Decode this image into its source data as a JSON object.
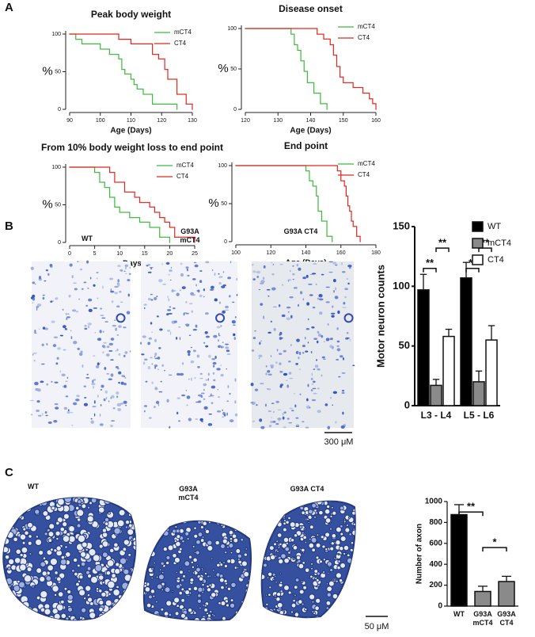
{
  "panel_labels": [
    "A",
    "B",
    "C"
  ],
  "chart_data": [
    {
      "type": "line",
      "step": true,
      "title": "Peak body weight",
      "x_label": "Age (Days)",
      "y_label": "%",
      "xlim": [
        90,
        130
      ],
      "xticks": [
        90,
        100,
        110,
        120,
        130
      ],
      "ylim": [
        0,
        100
      ],
      "yticks": [
        0,
        50,
        100
      ],
      "legend": "upper right",
      "series": [
        {
          "name": "mCT4",
          "color": "#3cb93c",
          "x": [
            90,
            92,
            94,
            100,
            103,
            106,
            107,
            108,
            110,
            111,
            112,
            114,
            117,
            125
          ],
          "values": [
            100,
            93,
            87,
            80,
            73,
            67,
            53,
            47,
            40,
            33,
            27,
            20,
            7,
            0
          ]
        },
        {
          "name": "CT4",
          "color": "#e3261e",
          "x": [
            90,
            106,
            110,
            117,
            119,
            121,
            122,
            125,
            128,
            130
          ],
          "values": [
            100,
            93,
            87,
            73,
            67,
            53,
            40,
            20,
            7,
            0
          ]
        }
      ]
    },
    {
      "type": "line",
      "step": true,
      "title": "Disease onset",
      "x_label": "Age (Days)",
      "y_label": "%",
      "xlim": [
        120,
        160
      ],
      "xticks": [
        120,
        130,
        140,
        150,
        160
      ],
      "ylim": [
        0,
        100
      ],
      "yticks": [
        0,
        50,
        100
      ],
      "legend": "upper right",
      "series": [
        {
          "name": "mCT4",
          "color": "#3cb93c",
          "x": [
            120,
            134,
            135,
            136,
            137,
            138,
            139,
            141,
            143,
            145
          ],
          "values": [
            100,
            93,
            80,
            73,
            60,
            47,
            33,
            20,
            7,
            0
          ]
        },
        {
          "name": "CT4",
          "color": "#e3261e",
          "x": [
            120,
            142,
            144,
            146,
            147,
            148,
            149,
            150,
            153,
            156,
            158,
            159,
            160
          ],
          "values": [
            100,
            93,
            87,
            80,
            67,
            53,
            40,
            33,
            27,
            20,
            13,
            7,
            0
          ]
        }
      ]
    },
    {
      "type": "line",
      "step": true,
      "title": "From 10% body weight loss to end point",
      "x_label": "Days",
      "y_label": "%",
      "xlim": [
        0,
        25
      ],
      "xticks": [
        0,
        5,
        10,
        15,
        20,
        25
      ],
      "ylim": [
        0,
        100
      ],
      "yticks": [
        0,
        50,
        100
      ],
      "legend": "upper right",
      "series": [
        {
          "name": "mCT4",
          "color": "#3cb93c",
          "x": [
            0,
            5,
            6,
            7,
            8,
            9,
            10,
            12,
            14,
            16,
            18,
            20
          ],
          "values": [
            100,
            93,
            80,
            73,
            60,
            47,
            40,
            33,
            27,
            20,
            7,
            0
          ]
        },
        {
          "name": "CT4",
          "color": "#e3261e",
          "x": [
            0,
            8,
            9,
            11,
            13,
            14,
            16,
            17,
            18,
            19,
            20,
            21,
            25
          ],
          "values": [
            100,
            93,
            80,
            67,
            60,
            53,
            47,
            40,
            33,
            27,
            20,
            7,
            0
          ]
        }
      ]
    },
    {
      "type": "line",
      "step": true,
      "title": "End point",
      "x_label": "Age (Days)",
      "y_label": "%",
      "xlim": [
        100,
        180
      ],
      "xticks": [
        100,
        120,
        140,
        160,
        180
      ],
      "ylim": [
        0,
        100
      ],
      "yticks": [
        0,
        50,
        100
      ],
      "legend": "upper right",
      "series": [
        {
          "name": "mCT4",
          "color": "#3cb93c",
          "x": [
            100,
            140,
            142,
            144,
            146,
            147,
            149,
            152,
            155
          ],
          "values": [
            100,
            93,
            80,
            73,
            60,
            40,
            27,
            7,
            0
          ]
        },
        {
          "name": "CT4",
          "color": "#e3261e",
          "x": [
            100,
            158,
            160,
            162,
            163,
            164,
            165,
            166,
            167,
            169,
            171
          ],
          "values": [
            100,
            93,
            80,
            73,
            60,
            47,
            40,
            27,
            20,
            7,
            0
          ]
        }
      ]
    },
    {
      "type": "bar",
      "y_label": "Motor neuron counts",
      "categories": [
        "L3 - L4",
        "L5 - L6"
      ],
      "ylim": [
        0,
        150
      ],
      "yticks": [
        0,
        50,
        100,
        150
      ],
      "legend": "upper right",
      "series": [
        {
          "name": "WT",
          "color": "#000000",
          "values": [
            97,
            107
          ],
          "errors": [
            13,
            13
          ]
        },
        {
          "name": "mCT4",
          "color": "#8a8a8a",
          "values": [
            17,
            20
          ],
          "errors": [
            5,
            9
          ]
        },
        {
          "name": "CT4",
          "color": "#ffffff",
          "values": [
            58,
            55
          ],
          "errors": [
            6,
            12
          ]
        }
      ],
      "annotations": [
        "**",
        "**",
        "**",
        "**"
      ]
    },
    {
      "type": "bar",
      "y_label": "Number of axon",
      "categories": [
        "WT",
        "G93A mCT4",
        "G93A CT4"
      ],
      "ylim": [
        0,
        1000
      ],
      "yticks": [
        0,
        200,
        400,
        600,
        800,
        1000
      ],
      "series": [
        {
          "colors": [
            "#000000",
            "#8a8a8a",
            "#8a8a8a"
          ],
          "values": [
            875,
            140,
            235
          ],
          "errors": [
            95,
            50,
            50
          ]
        }
      ],
      "annotations": [
        "**",
        "*"
      ]
    }
  ],
  "micrographs": [
    {
      "labels": [
        "WT",
        "G93A mCT4",
        "G93A CT4"
      ],
      "scale_bar": "300 μM"
    },
    {
      "labels": [
        "WT",
        "G93A mCT4",
        "G93A CT4"
      ],
      "scale_bar": "50 μM"
    }
  ]
}
